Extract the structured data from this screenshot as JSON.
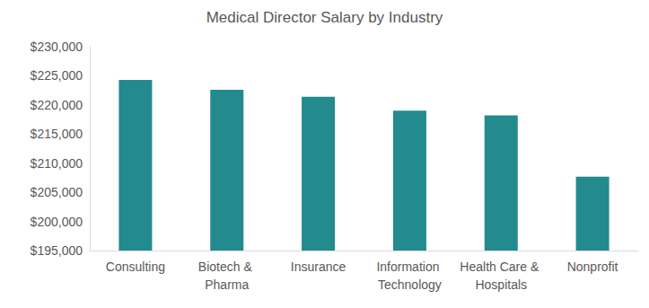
{
  "chart_data": {
    "type": "bar",
    "title": "Medical Director Salary by Industry",
    "categories": [
      "Consulting",
      "Biotech & Pharma",
      "Insurance",
      "Information Technology",
      "Health Care & Hospitals",
      "Nonprofit"
    ],
    "values": [
      224300,
      222600,
      221400,
      219000,
      218200,
      207700
    ],
    "color": "#238a8e",
    "ylim": [
      195000,
      230000
    ],
    "yticks": [
      {
        "value": 195000,
        "label": "$195,000"
      },
      {
        "value": 200000,
        "label": "$200,000"
      },
      {
        "value": 205000,
        "label": "$205,000"
      },
      {
        "value": 210000,
        "label": "$210,000"
      },
      {
        "value": 215000,
        "label": "$215,000"
      },
      {
        "value": 220000,
        "label": "$220,000"
      },
      {
        "value": 225000,
        "label": "$225,000"
      },
      {
        "value": 230000,
        "label": "$230,000"
      }
    ],
    "grid": false
  }
}
